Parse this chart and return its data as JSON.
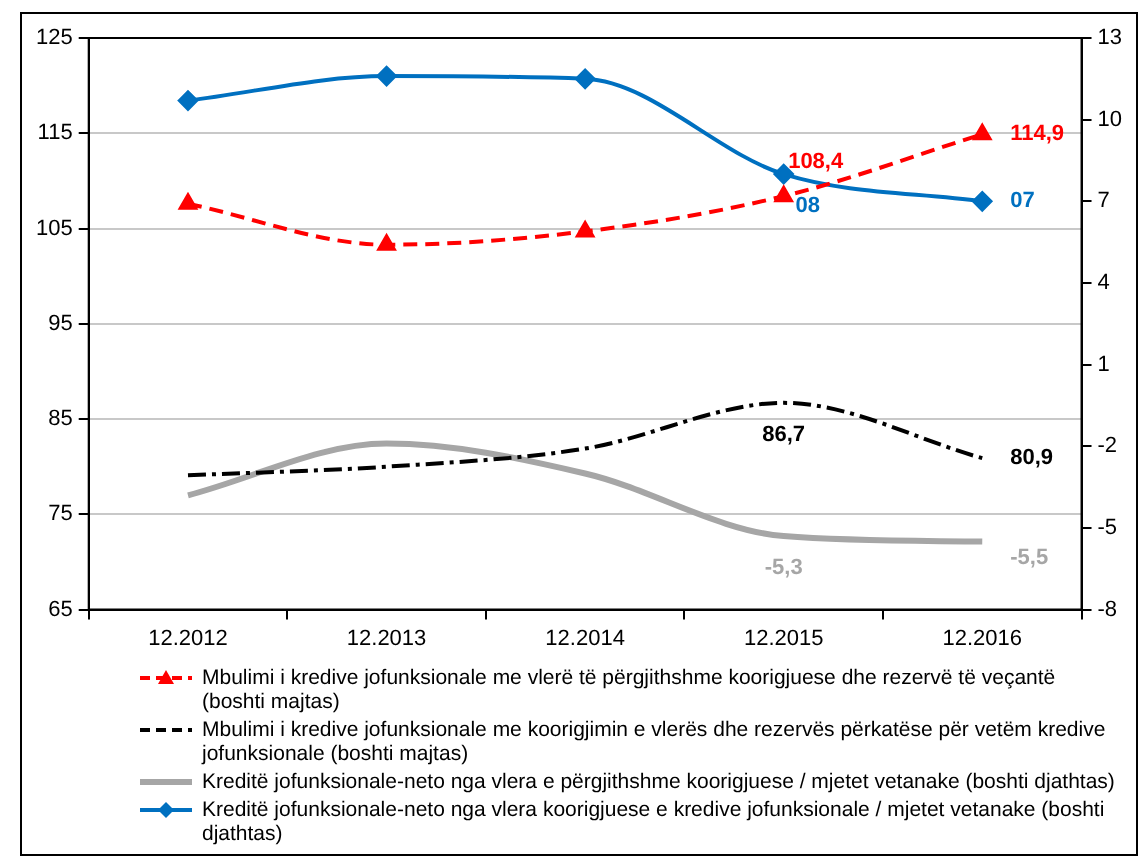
{
  "chart_data": {
    "type": "line",
    "categories": [
      "12.2012",
      "12.2013",
      "12.2014",
      "12.2015",
      "12.2016"
    ],
    "series": [
      {
        "name": "Mbulimi i kredive jofunksionale me vlerë të përgjithshme koorigjuese dhe rezervë të veçantë (boshti majtas)",
        "color": "#ff0000",
        "values": [
          107.6,
          103.3,
          104.7,
          108.4,
          114.9
        ],
        "value_labels": [
          null,
          null,
          null,
          "108,4",
          "114,9"
        ],
        "marker": "triangle",
        "line_style": "dashed"
      },
      {
        "name": "Mbulimi i kredive jofunksionale me koorigjimin e vlerës dhe rezervës përkatëse për vetëm kredive jofunksionale (boshti majtas)",
        "color": "#000000",
        "values": [
          79.1,
          80.0,
          81.9,
          86.7,
          80.9
        ],
        "value_labels": [
          null,
          null,
          null,
          "86,7",
          "80,9"
        ],
        "marker": "none",
        "line_style": "dashed"
      },
      {
        "name": "Kreditë jofunksionale-neto nga vlera e përgjithshme koorigjuese / mjetet vetanake (boshti djathtas)",
        "color": "#a6a6a6",
        "values": [
          -3.8,
          -1.9,
          -3.0,
          -5.3,
          -5.5
        ],
        "value_labels": [
          null,
          null,
          null,
          "-5,3",
          "-5,5"
        ],
        "marker": "none",
        "line_style": "solid",
        "axis": "y2"
      },
      {
        "name": "Kreditë jofunksionale-neto nga vlera koorigjuese e kredive jofunksionale  / mjetet vetanake (boshti djathtas)",
        "color": "#0070c0",
        "values": [
          10.7,
          11.6,
          11.5,
          8,
          7
        ],
        "value_labels": [
          null,
          null,
          null,
          "08",
          "07"
        ],
        "marker": "diamond",
        "line_style": "solid",
        "axis": "y2"
      }
    ],
    "ylim": [
      65,
      125
    ],
    "yticks": [
      65,
      75,
      85,
      95,
      105,
      115,
      125
    ],
    "y2lim": [
      -8,
      13
    ],
    "y2ticks": [
      -8,
      -5,
      -2,
      1,
      4,
      7,
      10,
      13
    ],
    "grid": "y",
    "legend": "bottom"
  }
}
